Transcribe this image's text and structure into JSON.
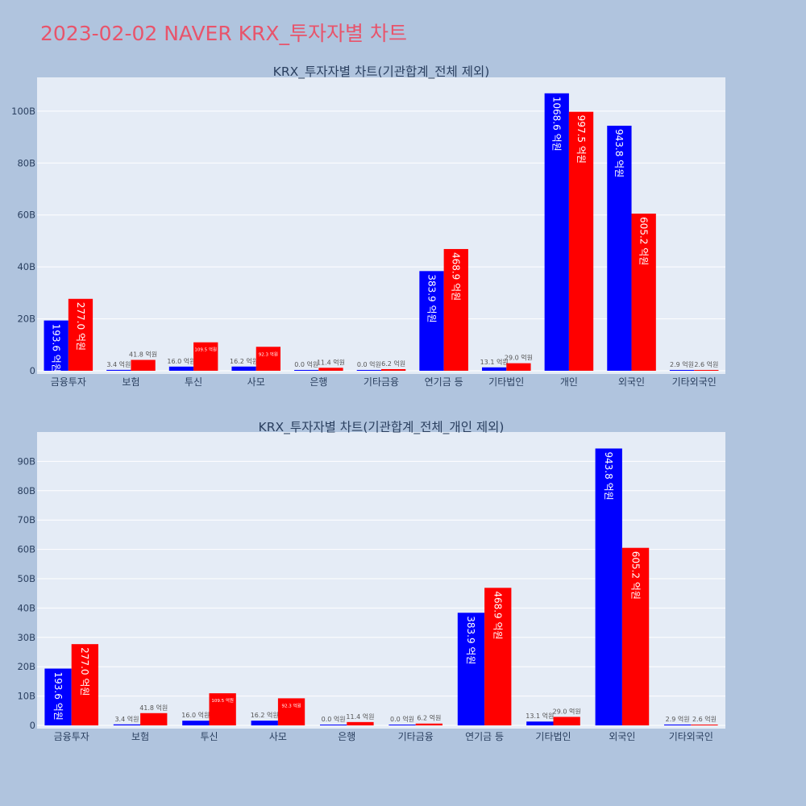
{
  "title": "2023-02-02 NAVER KRX_투자자별 차트",
  "colors": {
    "series_a": "#0000ff",
    "series_b": "#ff0000",
    "plot_bg": "#e5ecf6",
    "page_bg": "#b0c4de",
    "title": "#e8546b"
  },
  "chart_data": [
    {
      "type": "bar",
      "title": "KRX_투자자별 차트(기관합계_전체 제외)",
      "categories": [
        "금융투자",
        "보험",
        "투신",
        "사모",
        "은행",
        "기타금융",
        "연기금 등",
        "기타법인",
        "개인",
        "외국인",
        "기타외국인"
      ],
      "series": [
        {
          "values": [
            19360000000,
            340000000,
            1600000000,
            1620000000,
            0,
            0,
            38390000000,
            1310000000,
            106860000000,
            94380000000,
            290000000
          ],
          "labels": [
            "193.6 억원",
            "3.4 억원",
            "16.0 억원",
            "16.2 억원",
            "0.0 억원",
            "0.0 억원",
            "383.9 억원",
            "13.1 억원",
            "1068.6 억원",
            "943.8 억원",
            "2.9 억원"
          ]
        },
        {
          "values": [
            27700000000,
            4180000000,
            10950000000,
            9230000000,
            1140000000,
            620000000,
            46890000000,
            2900000000,
            99750000000,
            60520000000,
            260000000
          ],
          "labels": [
            "277.0 억원",
            "41.8 억원",
            "109.5 억원",
            "92.3 억원",
            "11.4 억원",
            "6.2 억원",
            "468.9 억원",
            "29.0 억원",
            "997.5 억원",
            "605.2 억원",
            "2.6 억원"
          ]
        }
      ],
      "yticks": [
        "0",
        "20B",
        "40B",
        "60B",
        "80B",
        "100B"
      ],
      "ylim": [
        0,
        113000000000
      ],
      "grid": true
    },
    {
      "type": "bar",
      "title": "KRX_투자자별 차트(기관합계_전체_개인 제외)",
      "categories": [
        "금융투자",
        "보험",
        "투신",
        "사모",
        "은행",
        "기타금융",
        "연기금 등",
        "기타법인",
        "외국인",
        "기타외국인"
      ],
      "series": [
        {
          "values": [
            19360000000,
            340000000,
            1600000000,
            1620000000,
            0,
            0,
            38390000000,
            1310000000,
            94380000000,
            290000000
          ],
          "labels": [
            "193.6 억원",
            "3.4 억원",
            "16.0 억원",
            "16.2 억원",
            "0.0 억원",
            "0.0 억원",
            "383.9 억원",
            "13.1 억원",
            "943.8 억원",
            "2.9 억원"
          ]
        },
        {
          "values": [
            27700000000,
            4180000000,
            10950000000,
            9230000000,
            1140000000,
            620000000,
            46890000000,
            2900000000,
            60520000000,
            260000000
          ],
          "labels": [
            "277.0 억원",
            "41.8 억원",
            "109.5 억원",
            "92.3 억원",
            "11.4 억원",
            "6.2 억원",
            "468.9 억원",
            "29.0 억원",
            "605.2 억원",
            "2.6 억원"
          ]
        }
      ],
      "yticks": [
        "0",
        "10B",
        "20B",
        "30B",
        "40B",
        "50B",
        "60B",
        "70B",
        "80B",
        "90B"
      ],
      "ylim": [
        0,
        100000000000
      ],
      "grid": true
    }
  ]
}
